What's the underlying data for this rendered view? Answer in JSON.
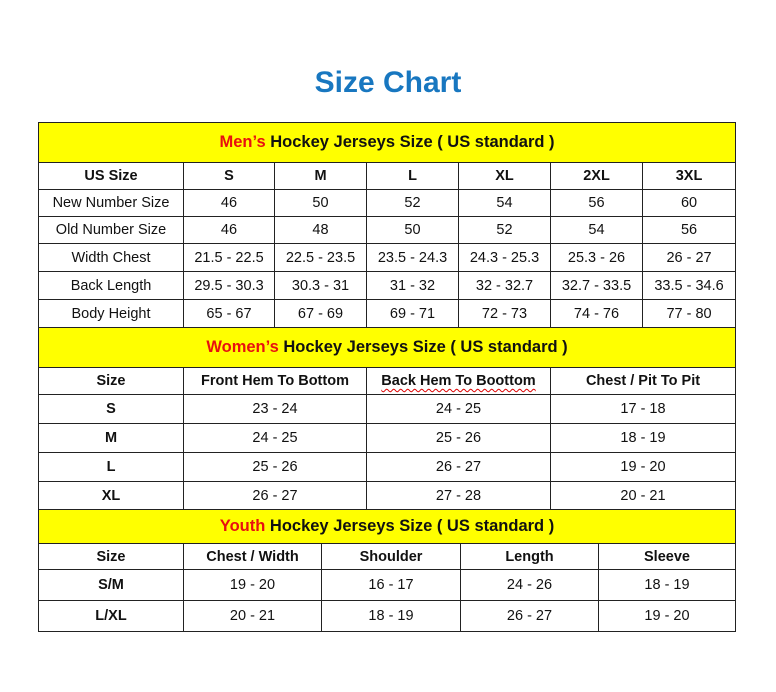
{
  "title": "Size Chart",
  "highlight_color": "#ffff00",
  "accent_red": "#e81010",
  "title_color": "#1877c0",
  "mens": {
    "banner_prefix": "Men’s",
    "banner_rest": "Hockey Jerseys Size ( US standard )",
    "headers": [
      "US Size",
      "S",
      "M",
      "L",
      "XL",
      "2XL",
      "3XL"
    ],
    "rows": [
      [
        "New Number Size",
        "46",
        "50",
        "52",
        "54",
        "56",
        "60"
      ],
      [
        "Old Number Size",
        "46",
        "48",
        "50",
        "52",
        "54",
        "56"
      ],
      [
        "Width Chest",
        "21.5 - 22.5",
        "22.5 - 23.5",
        "23.5 - 24.3",
        "24.3 - 25.3",
        "25.3 - 26",
        "26 - 27"
      ],
      [
        "Back Length",
        "29.5 - 30.3",
        "30.3 - 31",
        "31 - 32",
        "32 - 32.7",
        "32.7 - 33.5",
        "33.5 - 34.6"
      ],
      [
        "Body Height",
        "65 - 67",
        "67 - 69",
        "69 - 71",
        "72 - 73",
        "74 - 76",
        "77 - 80"
      ]
    ]
  },
  "womens": {
    "banner_prefix": "Women’s",
    "banner_rest": "Hockey Jerseys Size ( US standard )",
    "headers": [
      "Size",
      "Front Hem To Bottom",
      "Back Hem To Boottom",
      "Chest / Pit To Pit"
    ],
    "rows": [
      [
        "S",
        "23 - 24",
        "24 - 25",
        "17 - 18"
      ],
      [
        "M",
        "24 - 25",
        "25 - 26",
        "18 - 19"
      ],
      [
        "L",
        "25 - 26",
        "26 - 27",
        "19 - 20"
      ],
      [
        "XL",
        "26 - 27",
        "27 - 28",
        "20 - 21"
      ]
    ]
  },
  "youth": {
    "banner_prefix": "Youth",
    "banner_rest": "Hockey Jerseys Size ( US standard )",
    "headers": [
      "Size",
      "Chest / Width",
      "Shoulder",
      "Length",
      "Sleeve"
    ],
    "rows": [
      [
        "S/M",
        "19 - 20",
        "16 - 17",
        "24 - 26",
        "18 - 19"
      ],
      [
        "L/XL",
        "20 - 21",
        "18 - 19",
        "26 - 27",
        "19 - 20"
      ]
    ]
  }
}
